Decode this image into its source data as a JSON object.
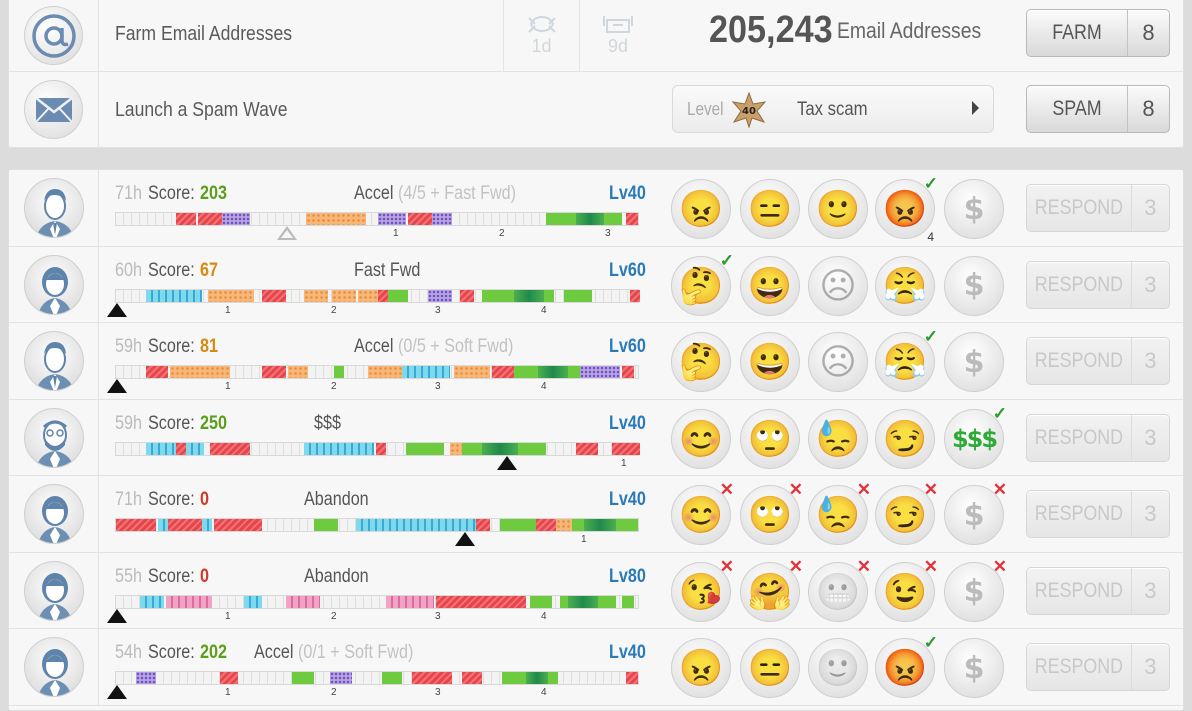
{
  "farm": {
    "label": "Farm Email Addresses",
    "timer1": "1d",
    "timer2": "9d",
    "count": "205,243",
    "count_label": "Email Addresses",
    "button_label": "FARM",
    "button_count": "8",
    "icon": "at-icon"
  },
  "spam": {
    "label": "Launch a Spam Wave",
    "level_label": "Level",
    "level_value": "40",
    "scam": "Tax scam",
    "button_label": "SPAM",
    "button_count": "8",
    "icon": "envelope-icon"
  },
  "respond_label": "RESPOND",
  "respond_count": "3",
  "score_label": "Score:",
  "colors": {
    "red": "#e8454a",
    "orange": "#f7b778",
    "purple": "#b9a3e6",
    "cyan": "#7fd9ec",
    "pink": "#f2a3c5",
    "green": "#6ecb40",
    "darkgreen": "#1f8a4c",
    "score_green": "#5a9e1a",
    "score_orange": "#d88a10",
    "score_red": "#d33a2c",
    "level_blue": "#2a7ab8",
    "check_green": "#2c9a2c",
    "cross_red": "#e0333b"
  },
  "victims": [
    {
      "hours": "71h",
      "score": "203",
      "score_color": "green",
      "status": "Accel",
      "status_extra": "(4/5 + Fast Fwd)",
      "level": "Lv40",
      "avatar": "man-avatar",
      "ticks": [
        "1",
        "2",
        "3"
      ],
      "marker": "outline",
      "reactions": [
        {
          "icon": "angry-face-icon",
          "e": "😠",
          "mark": ""
        },
        {
          "icon": "thinking-hair-face-icon",
          "e": "😑",
          "mark": ""
        },
        {
          "icon": "smile-face-icon",
          "e": "🙂",
          "mark": ""
        },
        {
          "icon": "red-angry-face-icon",
          "e": "😡",
          "mark": "check",
          "count": "4"
        },
        {
          "icon": "dollar-icon",
          "e": "$",
          "mark": "",
          "dim": true
        }
      ]
    },
    {
      "hours": "60h",
      "score": "67",
      "score_color": "orange",
      "status": "Fast Fwd",
      "status_extra": "",
      "level": "Lv60",
      "avatar": "woman-avatar",
      "ticks": [
        "1",
        "2",
        "3",
        "4"
      ],
      "marker": "solid",
      "reactions": [
        {
          "icon": "thinking-face-icon",
          "e": "🤔",
          "mark": "check"
        },
        {
          "icon": "grin-face-icon",
          "e": "😀",
          "mark": ""
        },
        {
          "icon": "sad-face-icon",
          "e": "☹",
          "mark": "",
          "dim": true
        },
        {
          "icon": "steam-face-icon",
          "e": "😤",
          "mark": ""
        },
        {
          "icon": "dollar-icon",
          "e": "$",
          "mark": "",
          "dim": true
        }
      ]
    },
    {
      "hours": "59h",
      "score": "81",
      "score_color": "orange",
      "status": "Accel",
      "status_extra": "(0/5 + Soft Fwd)",
      "level": "Lv60",
      "avatar": "man-avatar",
      "ticks": [
        "1",
        "2",
        "3",
        "4"
      ],
      "marker": "solid",
      "reactions": [
        {
          "icon": "thinking-face-icon",
          "e": "🤔",
          "mark": ""
        },
        {
          "icon": "grin-face-icon",
          "e": "😀",
          "mark": ""
        },
        {
          "icon": "sad-face-icon",
          "e": "☹",
          "mark": "",
          "dim": true
        },
        {
          "icon": "steam-face-icon",
          "e": "😤",
          "mark": "check"
        },
        {
          "icon": "dollar-icon",
          "e": "$",
          "mark": "",
          "dim": true
        }
      ]
    },
    {
      "hours": "59h",
      "score": "250",
      "score_color": "green",
      "status": "$$$",
      "status_extra": "",
      "level": "Lv40",
      "avatar": "bearded-man-avatar",
      "ticks": [
        "1"
      ],
      "marker": "solid",
      "reactions": [
        {
          "icon": "blush-face-icon",
          "e": "😊",
          "mark": ""
        },
        {
          "icon": "eye-roll-face-icon",
          "e": "🙄",
          "mark": ""
        },
        {
          "icon": "sweat-face-icon",
          "e": "😓",
          "mark": ""
        },
        {
          "icon": "smirk-face-icon",
          "e": "😏",
          "mark": ""
        },
        {
          "icon": "green-dollars-icon",
          "e": "$$$",
          "mark": "check",
          "green": true
        }
      ]
    },
    {
      "hours": "71h",
      "score": "0",
      "score_color": "red",
      "status": "Abandon",
      "status_extra": "",
      "level": "Lv40",
      "avatar": "woman-avatar",
      "ticks": [
        "1"
      ],
      "marker": "solid",
      "reactions": [
        {
          "icon": "blush-face-icon",
          "e": "😊",
          "mark": "cross"
        },
        {
          "icon": "eye-roll-face-icon",
          "e": "🙄",
          "mark": "cross"
        },
        {
          "icon": "sweat-face-icon",
          "e": "😓",
          "mark": "cross"
        },
        {
          "icon": "smirk-face-icon",
          "e": "😏",
          "mark": "cross"
        },
        {
          "icon": "dollar-icon",
          "e": "$",
          "mark": "cross",
          "dim": true
        }
      ]
    },
    {
      "hours": "55h",
      "score": "0",
      "score_color": "red",
      "status": "Abandon",
      "status_extra": "",
      "level": "Lv80",
      "avatar": "woman-avatar",
      "ticks": [
        "1",
        "2",
        "3",
        "4"
      ],
      "marker": "solid",
      "reactions": [
        {
          "icon": "kiss-face-icon",
          "e": "😘",
          "mark": "cross"
        },
        {
          "icon": "hug-face-icon",
          "e": "🤗",
          "mark": "cross"
        },
        {
          "icon": "grimace-face-icon",
          "e": "😬",
          "mark": "cross",
          "dim": true
        },
        {
          "icon": "wink-face-icon",
          "e": "😉",
          "mark": "cross"
        },
        {
          "icon": "dollar-icon",
          "e": "$",
          "mark": "cross",
          "dim": true
        }
      ]
    },
    {
      "hours": "54h",
      "score": "202",
      "score_color": "green",
      "status": "Accel",
      "status_extra": "(0/1 + Soft Fwd)",
      "level": "Lv40",
      "avatar": "woman-avatar",
      "ticks": [
        "1",
        "2",
        "3",
        "4"
      ],
      "marker": "solid",
      "reactions": [
        {
          "icon": "angry-face-icon",
          "e": "😠",
          "mark": ""
        },
        {
          "icon": "thinking-hair-face-icon",
          "e": "😑",
          "mark": ""
        },
        {
          "icon": "neutral-face-icon",
          "e": "🙂",
          "mark": "",
          "dim": true
        },
        {
          "icon": "red-angry-face-icon",
          "e": "😡",
          "mark": "check"
        },
        {
          "icon": "dollar-icon",
          "e": "$",
          "mark": "",
          "dim": true
        }
      ]
    }
  ]
}
